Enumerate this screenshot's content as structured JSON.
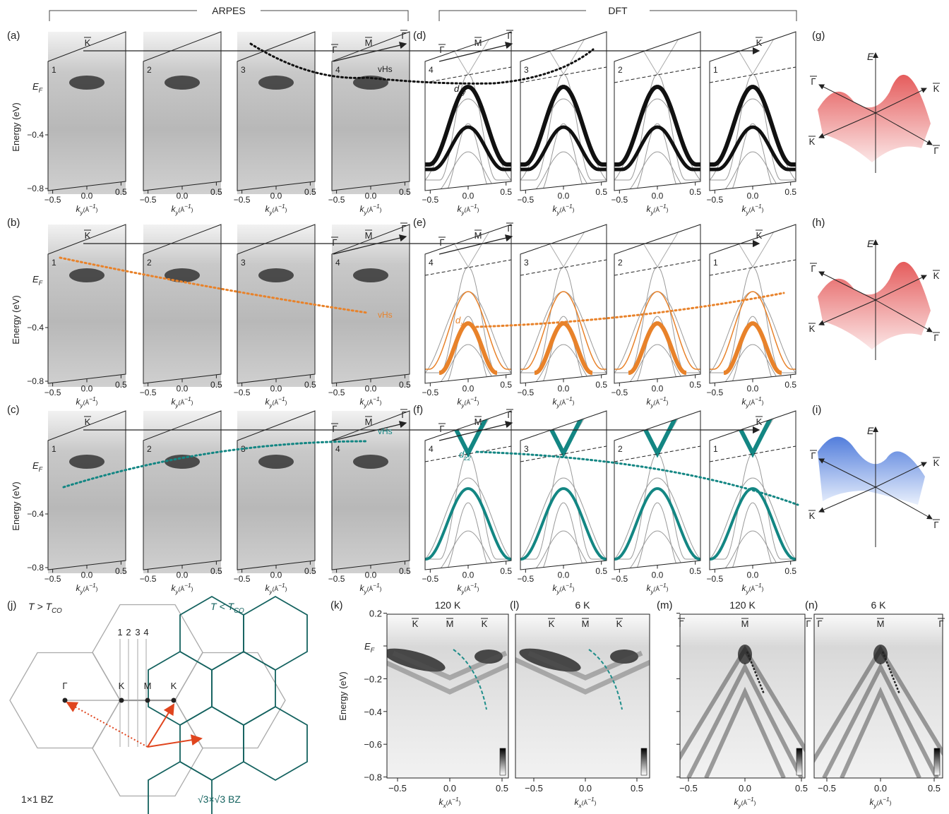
{
  "section_headers": {
    "arpes": "ARPES",
    "dft": "DFT"
  },
  "panel_labels": [
    "(a)",
    "(b)",
    "(c)",
    "(d)",
    "(e)",
    "(f)",
    "(g)",
    "(h)",
    "(i)",
    "(j)",
    "(k)",
    "(l)",
    "(m)",
    "(n)"
  ],
  "cut_numbers": [
    "1",
    "2",
    "3",
    "4"
  ],
  "band_axis": {
    "ylabel": "Energy (eV)",
    "ef": "E",
    "ef_sub": "F",
    "yticks": [
      "−0.4",
      "−0.8"
    ],
    "xticks": [
      "−0.5",
      "0.0",
      "0.5"
    ],
    "xlabel": "k",
    "xlabel_sub": "y",
    "xlabel_unit": "(Å",
    "xlabel_exp": "−1",
    "xlabel_close": ")"
  },
  "symmetry": {
    "gamma": "Γ",
    "m": "M",
    "k": "K"
  },
  "vhs": "vHs",
  "orbitals": [
    {
      "d": "d",
      "sub": "xy"
    },
    {
      "d": "d",
      "sub": "xz"
    },
    {
      "d": "d",
      "sub": "z2"
    }
  ],
  "energy_label": "E",
  "bz": {
    "high": "T > T",
    "high_sub": "CO",
    "low": "T < T",
    "low_sub": "CO",
    "cuts": [
      "1",
      "2",
      "3",
      "4"
    ],
    "points": [
      "Γ",
      "K",
      "M",
      "K"
    ],
    "bz1": "1×1 BZ",
    "bz3": "√3×√3 BZ"
  },
  "maps": {
    "titles": [
      "120 K",
      "6 K",
      "120 K",
      "6 K"
    ],
    "ylabel": "Energy (eV)",
    "yticks": [
      "0.2",
      "−0.2",
      "−0.4",
      "−0.6",
      "−0.8"
    ],
    "ef": "E",
    "ef_sub": "F",
    "xticks": [
      "−0.5",
      "0.0",
      "0.5"
    ],
    "xlabels": [
      {
        "k": "k",
        "sub": "x"
      },
      {
        "k": "k",
        "sub": "x"
      },
      {
        "k": "k",
        "sub": "y"
      },
      {
        "k": "k",
        "sub": "y"
      }
    ],
    "unit": "(Å",
    "exp": "−1",
    "close": ")"
  }
}
